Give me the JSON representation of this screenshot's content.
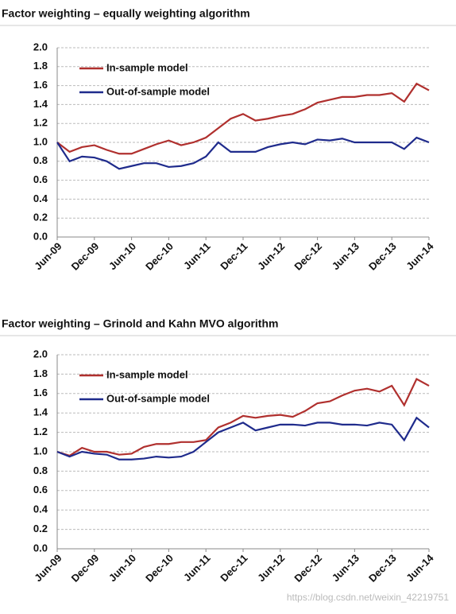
{
  "chart_data": [
    {
      "type": "line",
      "title": "Factor weighting – equally weighting algorithm",
      "categories": [
        "Jun-09",
        null,
        null,
        "Dec-09",
        null,
        null,
        "Jun-10",
        null,
        null,
        "Dec-10",
        null,
        null,
        "Jun-11",
        null,
        null,
        "Dec-11",
        null,
        null,
        "Jun-12",
        null,
        null,
        "Dec-12",
        null,
        null,
        "Jun-13",
        null,
        null,
        "Dec-13",
        null,
        null,
        "Jun-14"
      ],
      "series": [
        {
          "name": "In-sample model",
          "color": "#b0302e",
          "values": [
            1.0,
            0.9,
            0.95,
            0.97,
            0.92,
            0.88,
            0.88,
            0.93,
            0.98,
            1.02,
            0.97,
            1.0,
            1.05,
            1.15,
            1.25,
            1.3,
            1.23,
            1.25,
            1.28,
            1.3,
            1.35,
            1.42,
            1.45,
            1.48,
            1.48,
            1.5,
            1.5,
            1.52,
            1.43,
            1.62,
            1.55
          ]
        },
        {
          "name": "Out-of-sample model",
          "color": "#1f2b8c",
          "values": [
            1.0,
            0.8,
            0.85,
            0.84,
            0.8,
            0.72,
            0.75,
            0.78,
            0.78,
            0.74,
            0.75,
            0.78,
            0.85,
            1.0,
            0.9,
            0.9,
            0.9,
            0.95,
            0.98,
            1.0,
            0.98,
            1.03,
            1.02,
            1.04,
            1.0,
            1.0,
            1.0,
            1.0,
            0.93,
            1.05,
            1.0
          ]
        }
      ],
      "ylim": [
        0,
        2
      ],
      "yticks": [
        {
          "value": 0,
          "label": "0.0"
        },
        {
          "value": 0.2,
          "label": "0.2"
        },
        {
          "value": 0.4,
          "label": "0.4"
        },
        {
          "value": 0.6,
          "label": "0.6"
        },
        {
          "value": 0.8,
          "label": "0.8"
        },
        {
          "value": 1,
          "label": "1.0"
        },
        {
          "value": 1.2,
          "label": "1.2"
        },
        {
          "value": 1.4,
          "label": "1.4"
        },
        {
          "value": 1.6,
          "label": "1.6"
        },
        {
          "value": 1.8,
          "label": "1.8"
        },
        {
          "value": 2,
          "label": "2.0"
        }
      ],
      "grid": true,
      "legend": "upper left"
    },
    {
      "type": "line",
      "title": "Factor weighting – Grinold and Kahn MVO algorithm",
      "categories": [
        "Jun-09",
        null,
        null,
        "Dec-09",
        null,
        null,
        "Jun-10",
        null,
        null,
        "Dec-10",
        null,
        null,
        "Jun-11",
        null,
        null,
        "Dec-11",
        null,
        null,
        "Jun-12",
        null,
        null,
        "Dec-12",
        null,
        null,
        "Jun-13",
        null,
        null,
        "Dec-13",
        null,
        null,
        "Jun-14"
      ],
      "series": [
        {
          "name": "In-sample model",
          "color": "#b0302e",
          "values": [
            1.0,
            0.96,
            1.04,
            1.0,
            1.0,
            0.97,
            0.98,
            1.05,
            1.08,
            1.08,
            1.1,
            1.1,
            1.12,
            1.25,
            1.3,
            1.37,
            1.35,
            1.37,
            1.38,
            1.36,
            1.42,
            1.5,
            1.52,
            1.58,
            1.63,
            1.65,
            1.62,
            1.68,
            1.48,
            1.75,
            1.68
          ]
        },
        {
          "name": "Out-of-sample model",
          "color": "#1f2b8c",
          "values": [
            1.0,
            0.95,
            1.0,
            0.98,
            0.97,
            0.92,
            0.92,
            0.93,
            0.95,
            0.94,
            0.95,
            1.0,
            1.1,
            1.2,
            1.25,
            1.3,
            1.22,
            1.25,
            1.28,
            1.28,
            1.27,
            1.3,
            1.3,
            1.28,
            1.28,
            1.27,
            1.3,
            1.28,
            1.12,
            1.35,
            1.25
          ]
        }
      ],
      "ylim": [
        0,
        2
      ],
      "yticks": [
        {
          "value": 0,
          "label": "0.0"
        },
        {
          "value": 0.2,
          "label": "0.2"
        },
        {
          "value": 0.4,
          "label": "0.4"
        },
        {
          "value": 0.6,
          "label": "0.6"
        },
        {
          "value": 0.8,
          "label": "0.8"
        },
        {
          "value": 1,
          "label": "1.0"
        },
        {
          "value": 1.2,
          "label": "1.2"
        },
        {
          "value": 1.4,
          "label": "1.4"
        },
        {
          "value": 1.6,
          "label": "1.6"
        },
        {
          "value": 1.8,
          "label": "1.8"
        },
        {
          "value": 2,
          "label": "2.0"
        }
      ],
      "grid": true,
      "legend": "upper left"
    }
  ],
  "watermark": "https://blog.csdn.net/weixin_42219751"
}
